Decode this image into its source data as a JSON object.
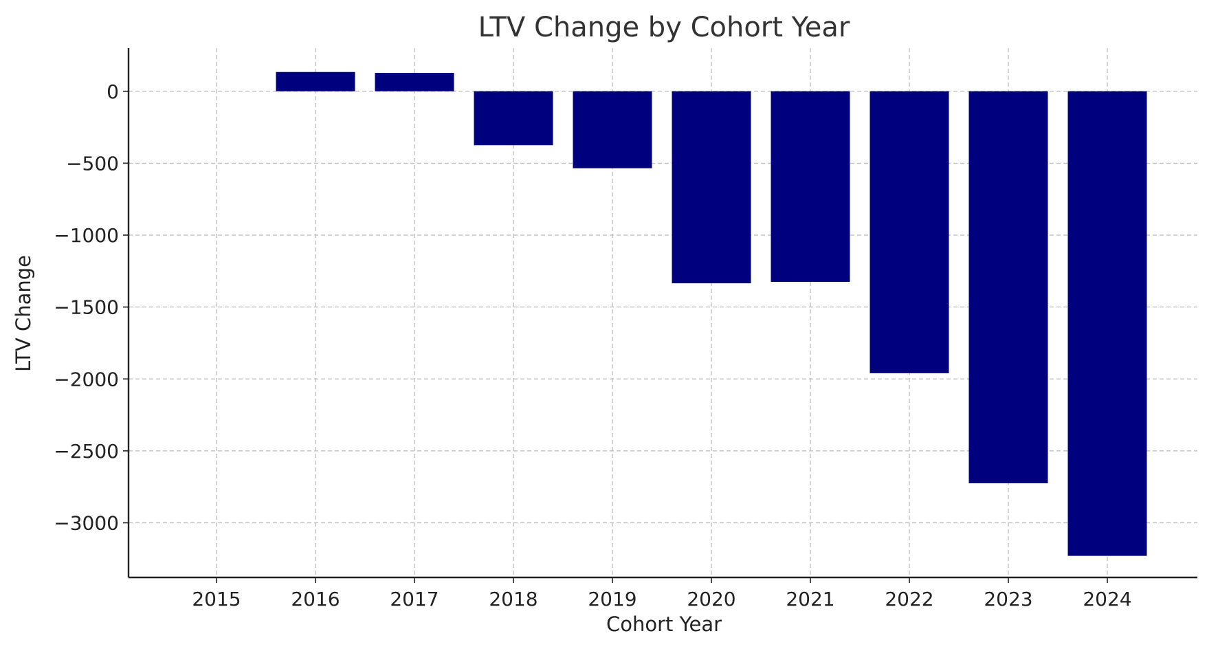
{
  "chart_data": {
    "type": "bar",
    "title": "LTV Change by Cohort Year",
    "xlabel": "Cohort Year",
    "ylabel": "LTV Change",
    "categories": [
      "2015",
      "2016",
      "2017",
      "2018",
      "2019",
      "2020",
      "2021",
      "2022",
      "2023",
      "2024"
    ],
    "values": [
      0,
      134,
      128,
      -375,
      -535,
      -1335,
      -1325,
      -1960,
      -2725,
      -3230
    ],
    "ylim": [
      -3380,
      300
    ],
    "yticks": [
      0,
      -500,
      -1000,
      -1500,
      -2000,
      -2500,
      -3000
    ],
    "ytick_labels": [
      "0",
      "−500",
      "−1000",
      "−1500",
      "−2000",
      "−2500",
      "−3000"
    ],
    "bar_color": "#00007f",
    "grid": true,
    "legend": null
  }
}
